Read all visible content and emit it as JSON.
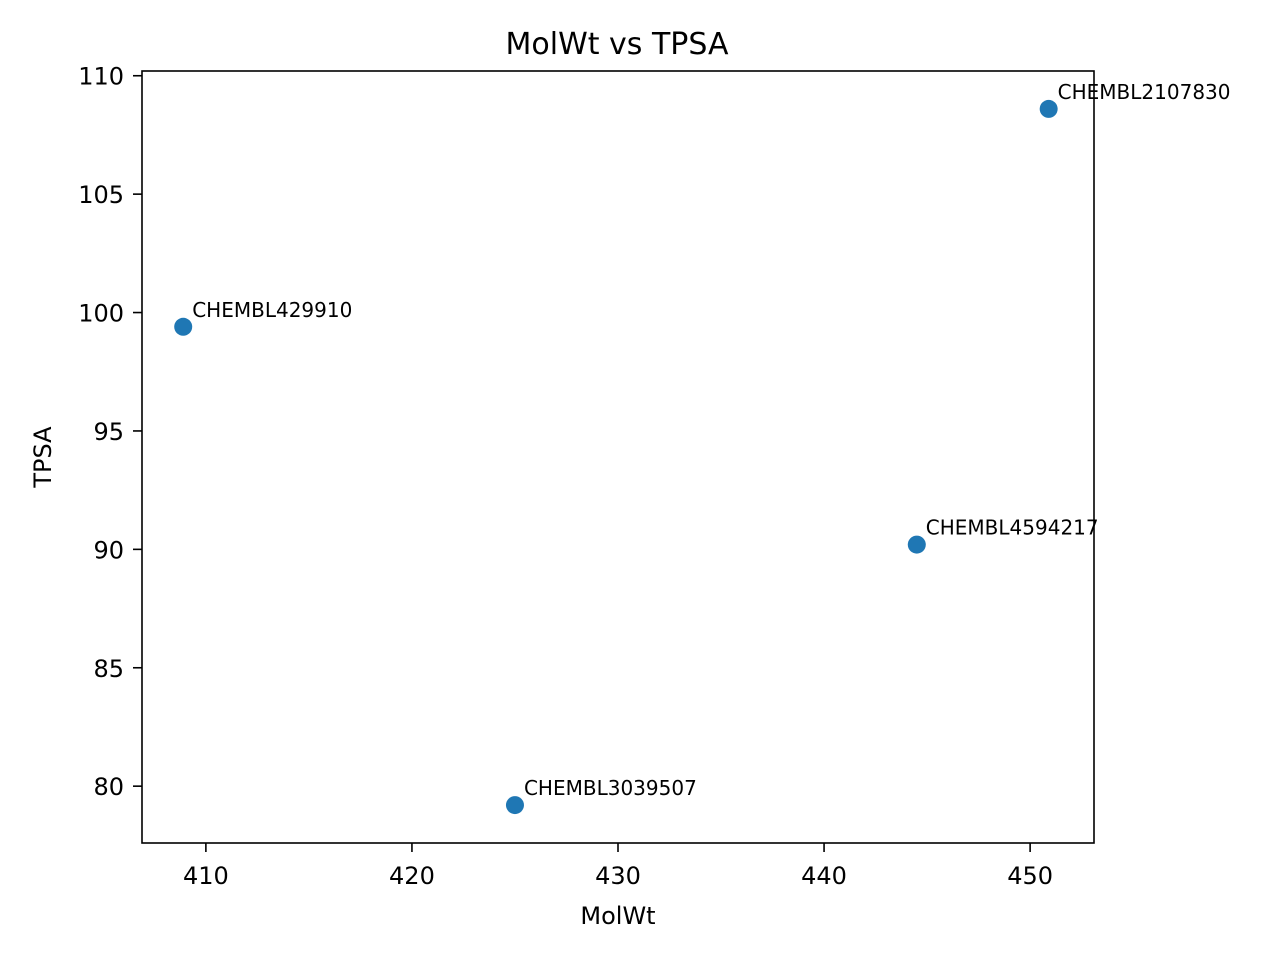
{
  "chart_data": {
    "type": "scatter",
    "title": "MolWt vs TPSA",
    "xlabel": "MolWt",
    "ylabel": "TPSA",
    "xlim": [
      406.9,
      453.1
    ],
    "ylim": [
      77.6,
      110.2
    ],
    "xticks": [
      410,
      420,
      430,
      440,
      450
    ],
    "yticks": [
      80,
      85,
      90,
      95,
      100,
      105,
      110
    ],
    "grid": false,
    "marker_color": "#1f77b4",
    "points": [
      {
        "label": "CHEMBL429910",
        "x": 408.9,
        "y": 99.4
      },
      {
        "label": "CHEMBL3039507",
        "x": 425.0,
        "y": 79.2
      },
      {
        "label": "CHEMBL4594217",
        "x": 444.5,
        "y": 90.2
      },
      {
        "label": "CHEMBL2107830",
        "x": 450.9,
        "y": 108.6
      }
    ]
  }
}
